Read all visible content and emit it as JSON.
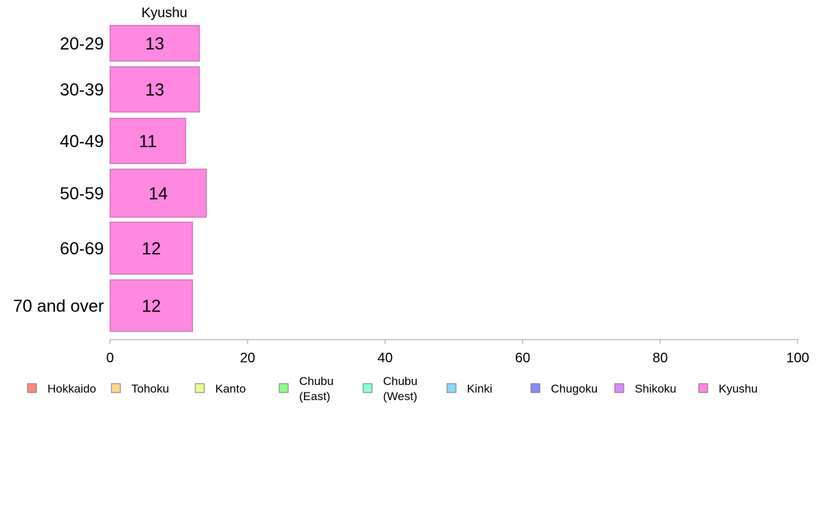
{
  "chart_data": {
    "type": "bar",
    "orientation": "horizontal",
    "stacked": true,
    "categories": [
      "20-29",
      "30-39",
      "40-49",
      "50-59",
      "60-69",
      "70 and over"
    ],
    "series": [
      {
        "name": "Kyushu",
        "color": "#ff88e0",
        "values": [
          13,
          13,
          11,
          14,
          12,
          12
        ]
      }
    ],
    "data_labels": [
      "13",
      "13",
      "11",
      "14",
      "12",
      "12"
    ],
    "series_header": "Kyushu",
    "xlim": [
      0,
      100
    ],
    "xticks": [
      0,
      20,
      40,
      60,
      80,
      100
    ],
    "grid": false,
    "legend_position": "bottom",
    "legend": [
      {
        "label": "Hokkaido",
        "color": "#ff8a80"
      },
      {
        "label": "Tohoku",
        "color": "#ffd98a"
      },
      {
        "label": "Kanto",
        "color": "#e6ff8a"
      },
      {
        "label": "Chubu\n(East)",
        "color": "#8aff8a"
      },
      {
        "label": "Chubu\n(West)",
        "color": "#8affd9"
      },
      {
        "label": "Kinki",
        "color": "#8ad9ff"
      },
      {
        "label": "Chugoku",
        "color": "#8a8aff"
      },
      {
        "label": "Shikoku",
        "color": "#d98aff"
      },
      {
        "label": "Kyushu",
        "color": "#ff88e0"
      }
    ]
  }
}
